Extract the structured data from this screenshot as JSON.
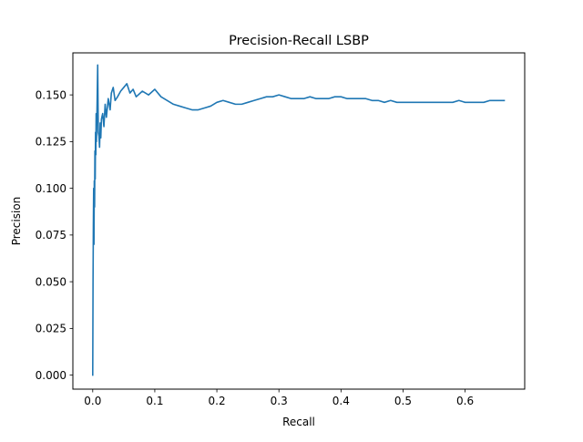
{
  "chart_data": {
    "type": "line",
    "title": "Precision-Recall LSBP",
    "xlabel": "Recall",
    "ylabel": "Precision",
    "xlim": [
      -0.032,
      0.696
    ],
    "ylim": [
      -0.0075,
      0.1725
    ],
    "grid": false,
    "legend": "none",
    "xticks": [
      0.0,
      0.1,
      0.2,
      0.3,
      0.4,
      0.5,
      0.6
    ],
    "xtick_labels": [
      "0.0",
      "0.1",
      "0.2",
      "0.3",
      "0.4",
      "0.5",
      "0.6"
    ],
    "yticks": [
      0.0,
      0.025,
      0.05,
      0.075,
      0.1,
      0.125,
      0.15
    ],
    "ytick_labels": [
      "0.000",
      "0.025",
      "0.050",
      "0.075",
      "0.100",
      "0.125",
      "0.150"
    ],
    "series": [
      {
        "color": "#1f77b4",
        "x": [
          0.0,
          0.0005,
          0.001,
          0.0015,
          0.002,
          0.0025,
          0.003,
          0.0035,
          0.004,
          0.0045,
          0.005,
          0.0055,
          0.006,
          0.007,
          0.008,
          0.009,
          0.01,
          0.011,
          0.012,
          0.013,
          0.014,
          0.016,
          0.018,
          0.02,
          0.022,
          0.025,
          0.028,
          0.03,
          0.033,
          0.036,
          0.04,
          0.045,
          0.05,
          0.055,
          0.06,
          0.065,
          0.07,
          0.08,
          0.09,
          0.1,
          0.11,
          0.12,
          0.13,
          0.14,
          0.15,
          0.16,
          0.17,
          0.18,
          0.19,
          0.2,
          0.21,
          0.22,
          0.23,
          0.24,
          0.25,
          0.26,
          0.27,
          0.28,
          0.29,
          0.3,
          0.31,
          0.32,
          0.33,
          0.34,
          0.35,
          0.36,
          0.37,
          0.38,
          0.39,
          0.4,
          0.41,
          0.42,
          0.43,
          0.44,
          0.45,
          0.46,
          0.47,
          0.48,
          0.49,
          0.5,
          0.51,
          0.52,
          0.53,
          0.54,
          0.55,
          0.56,
          0.57,
          0.58,
          0.59,
          0.6,
          0.61,
          0.62,
          0.63,
          0.64,
          0.65,
          0.663
        ],
        "y": [
          0.0,
          0.05,
          0.08,
          0.1,
          0.07,
          0.104,
          0.09,
          0.12,
          0.105,
          0.13,
          0.118,
          0.14,
          0.125,
          0.145,
          0.166,
          0.13,
          0.128,
          0.122,
          0.135,
          0.127,
          0.137,
          0.14,
          0.133,
          0.145,
          0.138,
          0.148,
          0.142,
          0.151,
          0.154,
          0.147,
          0.149,
          0.152,
          0.154,
          0.156,
          0.151,
          0.153,
          0.149,
          0.152,
          0.15,
          0.153,
          0.149,
          0.147,
          0.145,
          0.144,
          0.143,
          0.142,
          0.142,
          0.143,
          0.144,
          0.146,
          0.147,
          0.146,
          0.145,
          0.145,
          0.146,
          0.147,
          0.148,
          0.149,
          0.149,
          0.15,
          0.149,
          0.148,
          0.148,
          0.148,
          0.149,
          0.148,
          0.148,
          0.148,
          0.149,
          0.149,
          0.148,
          0.148,
          0.148,
          0.148,
          0.147,
          0.147,
          0.146,
          0.147,
          0.146,
          0.146,
          0.146,
          0.146,
          0.146,
          0.146,
          0.146,
          0.146,
          0.146,
          0.146,
          0.147,
          0.146,
          0.146,
          0.146,
          0.146,
          0.147,
          0.147,
          0.147
        ]
      }
    ]
  }
}
